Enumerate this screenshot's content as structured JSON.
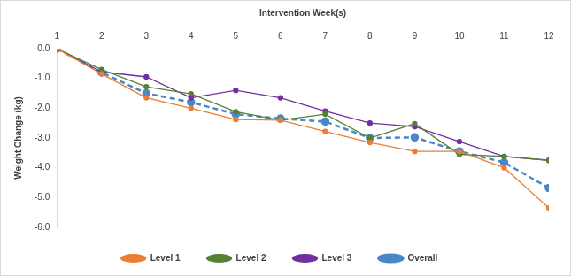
{
  "chart_data": {
    "type": "line",
    "x_label": "Intervention Week(s)",
    "y_label": "Weight Change (kg)",
    "categories": [
      1,
      2,
      3,
      4,
      5,
      6,
      7,
      8,
      9,
      10,
      11,
      12
    ],
    "series": [
      {
        "name": "Level 1",
        "color": "#ed7d31",
        "marker": "circle",
        "line_style": "solid",
        "values": [
          0,
          -0.85,
          -1.65,
          -2.0,
          -2.38,
          -2.4,
          -2.78,
          -3.15,
          -3.45,
          -3.45,
          -4.0,
          -5.35
        ]
      },
      {
        "name": "Level 2",
        "color": "#548235",
        "marker": "circle",
        "line_style": "solid",
        "values": [
          0,
          -0.7,
          -1.28,
          -1.52,
          -2.12,
          -2.4,
          -2.2,
          -3.0,
          -2.52,
          -3.55,
          -3.62,
          -3.75
        ]
      },
      {
        "name": "Level 3",
        "color": "#7030a0",
        "marker": "circle",
        "line_style": "solid",
        "values": [
          0,
          -0.78,
          -0.95,
          -1.65,
          -1.4,
          -1.65,
          -2.1,
          -2.5,
          -2.62,
          -3.12,
          -3.62,
          -3.75
        ]
      },
      {
        "name": "Overall",
        "color": "#4a86c8",
        "marker": "circle",
        "line_style": "dashed",
        "values": [
          0,
          -0.8,
          -1.5,
          -1.8,
          -2.2,
          -2.35,
          -2.45,
          -3.0,
          -2.98,
          -3.45,
          -3.82,
          -4.68
        ]
      }
    ],
    "ylim": [
      -6,
      0
    ],
    "yticks": [
      {
        "value": 0,
        "label": "0.0"
      },
      {
        "value": -1,
        "label": "-1.0"
      },
      {
        "value": -2,
        "label": "-2.0"
      },
      {
        "value": -3,
        "label": "-3.0"
      },
      {
        "value": -4,
        "label": "-4.0"
      },
      {
        "value": -5,
        "label": "-5.0"
      },
      {
        "value": -6,
        "label": "-6.0"
      }
    ],
    "grid": false,
    "legend": "bottom"
  }
}
